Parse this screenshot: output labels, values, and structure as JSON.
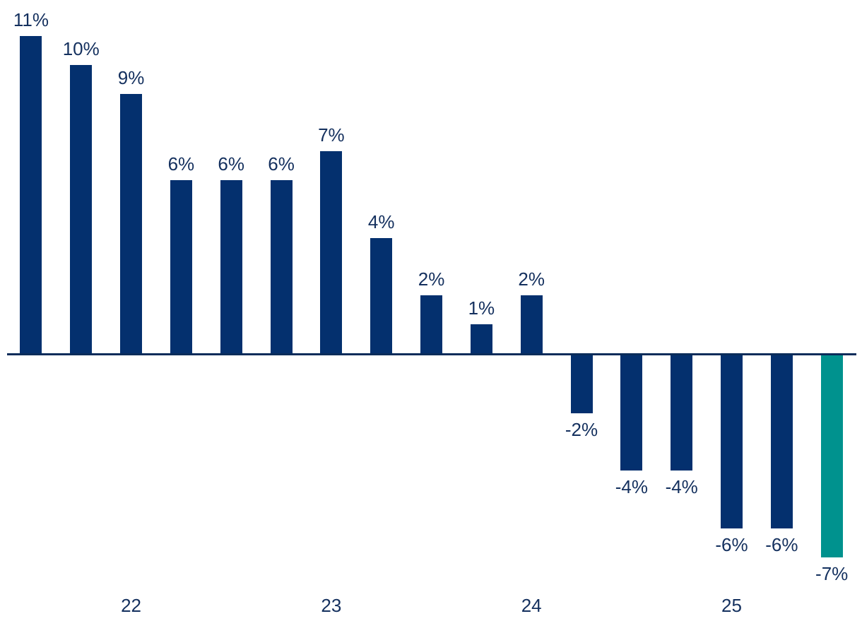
{
  "chart_data": {
    "type": "bar",
    "title": "",
    "values": [
      11,
      10,
      9,
      6,
      6,
      6,
      7,
      4,
      2,
      1,
      2,
      -2,
      -4,
      -4,
      -6,
      -6,
      -7
    ],
    "data_labels": [
      "11%",
      "10%",
      "9%",
      "6%",
      "6%",
      "6%",
      "7%",
      "4%",
      "2%",
      "1%",
      "2%",
      "-2%",
      "-4%",
      "-4%",
      "-6%",
      "-6%",
      "-7%"
    ],
    "unit": "%",
    "highlight_index": 16,
    "x_axis": {
      "tick_labels": [
        {
          "label": "22",
          "bar_index": 2
        },
        {
          "label": "23",
          "bar_index": 6
        },
        {
          "label": "24",
          "bar_index": 10
        },
        {
          "label": "25",
          "bar_index": 14
        }
      ]
    },
    "ylim": [
      -8,
      12
    ],
    "grid": false,
    "legend": null,
    "colors": {
      "bar": "#04306E",
      "highlight_bar": "#00928E",
      "label_text": "#14305E",
      "axis_line": "#0A2C5A"
    }
  }
}
